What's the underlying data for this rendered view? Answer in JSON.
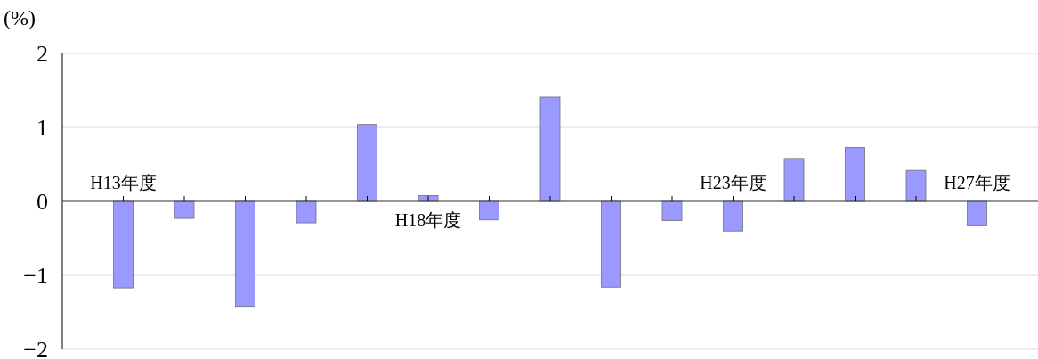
{
  "chart_data": {
    "type": "bar",
    "ylabel": "(%)",
    "categories": [
      "H13年度",
      null,
      null,
      null,
      null,
      "H18年度",
      null,
      null,
      null,
      null,
      "H23年度",
      null,
      null,
      null,
      "H27年度"
    ],
    "series": [
      {
        "color": "#9999ff",
        "values": [
          -1.17,
          -0.23,
          -1.43,
          -0.29,
          1.04,
          0.08,
          -0.25,
          1.41,
          -1.16,
          -0.26,
          -0.4,
          0.58,
          0.73,
          0.42,
          -0.33
        ]
      }
    ],
    "ylim": [
      -2,
      2
    ],
    "yticks": [
      {
        "value": -2,
        "label": "−2"
      },
      {
        "value": -1,
        "label": "−1"
      },
      0,
      1,
      2
    ],
    "grid": "y"
  }
}
